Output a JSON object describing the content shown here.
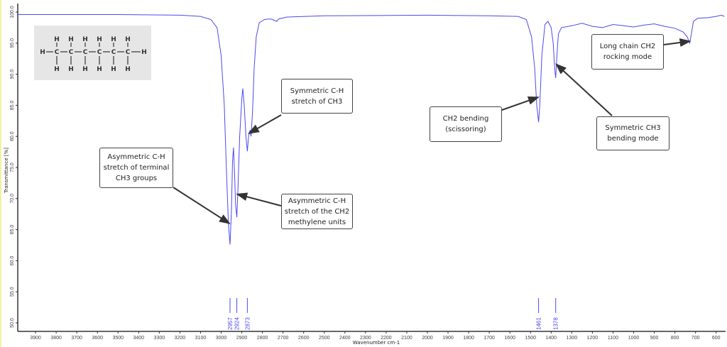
{
  "chart_data": {
    "type": "line",
    "title": "",
    "xlabel": "Wavenumber cm-1",
    "ylabel": "Transmittance [%]",
    "xlim": [
      3990,
      560
    ],
    "ylim": [
      48.5,
      100.5
    ],
    "x_reversed": true,
    "grid": false,
    "line_color": "#4a4af0",
    "xticks": [
      3900,
      3800,
      3700,
      3600,
      3500,
      3400,
      3300,
      3200,
      3100,
      3000,
      2900,
      2800,
      2700,
      2600,
      2500,
      2400,
      2300,
      2200,
      2100,
      2000,
      1900,
      1800,
      1700,
      1600,
      1500,
      1400,
      1300,
      1200,
      1100,
      1000,
      900,
      800,
      700,
      600
    ],
    "yticks": [
      "100.0",
      "95.0",
      "90.0",
      "85.0",
      "80.0",
      "75.0",
      "70.0",
      "65.0",
      "60.0",
      "55.0",
      "50.0"
    ],
    "series": [
      {
        "points": [
          [
            3990,
            99.6
          ],
          [
            3500,
            99.6
          ],
          [
            3200,
            99.5
          ],
          [
            3100,
            99.3
          ],
          [
            3050,
            98.8
          ],
          [
            3020,
            97.5
          ],
          [
            3000,
            93
          ],
          [
            2985,
            85
          ],
          [
            2975,
            75
          ],
          [
            2965,
            66
          ],
          [
            2957,
            62.6
          ],
          [
            2950,
            68
          ],
          [
            2945,
            76
          ],
          [
            2940,
            78.2
          ],
          [
            2935,
            74
          ],
          [
            2930,
            69
          ],
          [
            2924,
            67
          ],
          [
            2918,
            72
          ],
          [
            2910,
            80
          ],
          [
            2900,
            86
          ],
          [
            2895,
            87.7
          ],
          [
            2888,
            85
          ],
          [
            2880,
            80
          ],
          [
            2873,
            77.6
          ],
          [
            2867,
            80
          ],
          [
            2860,
            81
          ],
          [
            2855,
            80
          ],
          [
            2848,
            84
          ],
          [
            2840,
            91
          ],
          [
            2830,
            96
          ],
          [
            2815,
            98.3
          ],
          [
            2790,
            98.8
          ],
          [
            2760,
            98.9
          ],
          [
            2730,
            98.5
          ],
          [
            2720,
            98.9
          ],
          [
            2680,
            99.2
          ],
          [
            2500,
            99.4
          ],
          [
            2000,
            99.5
          ],
          [
            1700,
            99.4
          ],
          [
            1560,
            99.3
          ],
          [
            1520,
            98.8
          ],
          [
            1495,
            96
          ],
          [
            1480,
            91
          ],
          [
            1470,
            85
          ],
          [
            1461,
            82.3
          ],
          [
            1455,
            85
          ],
          [
            1445,
            93
          ],
          [
            1430,
            98
          ],
          [
            1415,
            98.5
          ],
          [
            1400,
            97.5
          ],
          [
            1390,
            95
          ],
          [
            1383,
            91
          ],
          [
            1378,
            89.4
          ],
          [
            1372,
            93
          ],
          [
            1365,
            96.5
          ],
          [
            1350,
            97.5
          ],
          [
            1300,
            97.8
          ],
          [
            1250,
            98.2
          ],
          [
            1200,
            97.7
          ],
          [
            1150,
            97.5
          ],
          [
            1100,
            98
          ],
          [
            1050,
            97.8
          ],
          [
            1000,
            97.6
          ],
          [
            950,
            97.9
          ],
          [
            900,
            98.1
          ],
          [
            850,
            97.7
          ],
          [
            800,
            97.4
          ],
          [
            760,
            96.8
          ],
          [
            740,
            96
          ],
          [
            728,
            95
          ],
          [
            720,
            96.5
          ],
          [
            710,
            98.5
          ],
          [
            690,
            99
          ],
          [
            640,
            99.1
          ],
          [
            600,
            99.3
          ],
          [
            575,
            99.5
          ],
          [
            560,
            99.3
          ]
        ]
      }
    ],
    "peak_labels": [
      "2957",
      "2924",
      "2873",
      "1461",
      "1378"
    ],
    "annotations": [
      {
        "text": [
          "Symmetric C-H",
          "stretch of CH3"
        ],
        "target": [
          2865,
          80.5
        ]
      },
      {
        "text": [
          "Asymmetric C-H",
          "stretch of terminal",
          "CH3 groups"
        ],
        "target": [
          2960,
          66
        ]
      },
      {
        "text": [
          "Asymmetric C-H",
          "stretch of the CH2",
          "methylene units"
        ],
        "target": [
          2922,
          70.7
        ]
      },
      {
        "text": [
          "CH2 bending",
          "(scissoring)"
        ],
        "target": [
          1463,
          86.3
        ]
      },
      {
        "text": [
          "Symmetric CH3",
          "bending mode"
        ],
        "target": [
          1375,
          91.6
        ]
      },
      {
        "text": [
          "Long chain CH2",
          "rocking mode"
        ],
        "target": [
          728,
          95.3
        ]
      }
    ],
    "molecule": {
      "atoms": "H",
      "carbon": "C"
    }
  }
}
